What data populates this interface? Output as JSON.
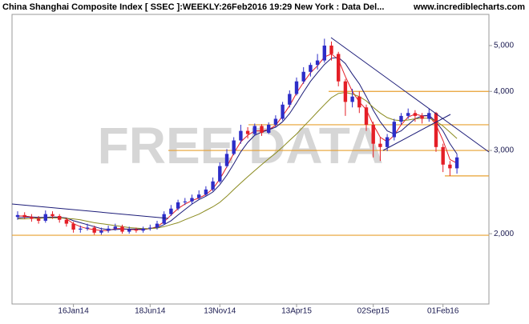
{
  "chart_data": {
    "type": "candlestick",
    "title": "China Shanghai Composite Index [ SSEC ]:WEEKLY:26Feb2016 19:29 New York : Data Del...",
    "source": "www.incrediblecharts.com",
    "watermark": "FREE DATA",
    "log_scale": true,
    "ylim": [
      1420,
      5820
    ],
    "yticks": [
      {
        "value": 2000,
        "label": "2,000"
      },
      {
        "value": 3000,
        "label": "3,000"
      },
      {
        "value": 4000,
        "label": "4,000"
      },
      {
        "value": 5000,
        "label": "5,000"
      }
    ],
    "categories": [
      null,
      null,
      null,
      null,
      null,
      null,
      null,
      null,
      "16Jan14",
      null,
      null,
      null,
      null,
      null,
      null,
      null,
      null,
      null,
      null,
      "18Jun14",
      null,
      null,
      null,
      null,
      null,
      null,
      null,
      null,
      null,
      "13Nov14",
      null,
      null,
      null,
      null,
      null,
      null,
      null,
      null,
      null,
      null,
      "13Apr15",
      null,
      null,
      null,
      null,
      null,
      null,
      null,
      null,
      null,
      null,
      "02Sep15",
      null,
      null,
      null,
      null,
      null,
      null,
      null,
      null,
      null,
      "01Feb16",
      null,
      null
    ],
    "open": [
      2170,
      2190,
      2170,
      2150,
      2130,
      2200,
      2180,
      2140,
      2100,
      2040,
      2050,
      2060,
      2010,
      2030,
      2050,
      2070,
      2020,
      2040,
      2030,
      2050,
      2060,
      2100,
      2200,
      2260,
      2330,
      2340,
      2380,
      2420,
      2480,
      2580,
      2780,
      2950,
      3150,
      3300,
      3250,
      3380,
      3270,
      3400,
      3500,
      3750,
      3950,
      4200,
      4400,
      4550,
      4650,
      5000,
      4800,
      4200,
      3800,
      3900,
      3700,
      3400,
      3100,
      3050,
      3200,
      3450,
      3550,
      3600,
      3550,
      3500,
      3600,
      3050,
      2800,
      2750
    ],
    "high": [
      2230,
      2220,
      2200,
      2180,
      2240,
      2230,
      2200,
      2160,
      2120,
      2080,
      2100,
      2080,
      2060,
      2080,
      2100,
      2090,
      2070,
      2060,
      2070,
      2090,
      2130,
      2230,
      2300,
      2360,
      2380,
      2420,
      2470,
      2520,
      2630,
      2830,
      3020,
      3200,
      3400,
      3360,
      3420,
      3410,
      3440,
      3560,
      3800,
      4020,
      4280,
      4500,
      4600,
      4800,
      5170,
      5100,
      4850,
      4250,
      4050,
      4000,
      3750,
      3450,
      3200,
      3250,
      3500,
      3600,
      3680,
      3650,
      3600,
      3680,
      3620,
      3100,
      2850,
      2950
    ],
    "low": [
      2140,
      2150,
      2120,
      2100,
      2110,
      2150,
      2110,
      2070,
      2010,
      2010,
      2030,
      1990,
      1990,
      2010,
      2030,
      2000,
      2000,
      2010,
      2010,
      2030,
      2040,
      2090,
      2180,
      2240,
      2300,
      2310,
      2360,
      2400,
      2460,
      2560,
      2760,
      2930,
      3100,
      3180,
      3220,
      3220,
      3250,
      3360,
      3470,
      3700,
      3920,
      4150,
      4300,
      4450,
      4600,
      4650,
      4100,
      3550,
      3700,
      3600,
      3300,
      2900,
      2850,
      2990,
      3150,
      3400,
      3500,
      3450,
      3420,
      3450,
      2980,
      2700,
      2650,
      2680
    ],
    "close": [
      2190,
      2170,
      2150,
      2130,
      2200,
      2180,
      2140,
      2100,
      2040,
      2050,
      2060,
      2010,
      2030,
      2050,
      2070,
      2020,
      2040,
      2030,
      2050,
      2060,
      2100,
      2200,
      2260,
      2330,
      2340,
      2380,
      2420,
      2480,
      2580,
      2780,
      2950,
      3150,
      3300,
      3250,
      3380,
      3270,
      3400,
      3500,
      3750,
      3950,
      4200,
      4400,
      4550,
      4650,
      5000,
      4800,
      4200,
      3800,
      3900,
      3700,
      3400,
      3100,
      3050,
      3200,
      3450,
      3550,
      3600,
      3550,
      3500,
      3600,
      3050,
      2800,
      2750,
      2900
    ],
    "up_color": "#2d2dc8",
    "down_color": "#e41e26",
    "moving_averages": [
      {
        "color": "#e41e26",
        "values": [
          2180,
          2180,
          2170,
          2160,
          2160,
          2170,
          2170,
          2150,
          2100,
          2070,
          2050,
          2040,
          2030,
          2030,
          2050,
          2050,
          2040,
          2040,
          2040,
          2050,
          2070,
          2120,
          2190,
          2260,
          2310,
          2350,
          2380,
          2420,
          2490,
          2610,
          2770,
          2960,
          3130,
          3230,
          3300,
          3300,
          3320,
          3390,
          3550,
          3730,
          3970,
          4180,
          4380,
          4530,
          4730,
          4800,
          4670,
          4300,
          4000,
          3800,
          3660,
          3400,
          3200,
          3130,
          3230,
          3400,
          3530,
          3580,
          3550,
          3550,
          3400,
          3150,
          2870,
          2820
        ]
      },
      {
        "color": "#1c1c78",
        "values": [
          2160,
          2165,
          2170,
          2165,
          2165,
          2170,
          2165,
          2160,
          2130,
          2110,
          2090,
          2070,
          2050,
          2040,
          2040,
          2045,
          2045,
          2045,
          2045,
          2050,
          2060,
          2090,
          2130,
          2190,
          2250,
          2310,
          2360,
          2400,
          2450,
          2540,
          2660,
          2810,
          2980,
          3120,
          3230,
          3280,
          3320,
          3360,
          3450,
          3590,
          3780,
          3990,
          4200,
          4380,
          4560,
          4700,
          4720,
          4580,
          4350,
          4150,
          3900,
          3650,
          3450,
          3300,
          3250,
          3300,
          3400,
          3500,
          3550,
          3560,
          3450,
          3300,
          3100,
          2950
        ]
      },
      {
        "color": "#8a8a1e",
        "values": [
          2150,
          2150,
          2155,
          2155,
          2160,
          2160,
          2160,
          2155,
          2150,
          2140,
          2125,
          2110,
          2100,
          2090,
          2080,
          2070,
          2060,
          2055,
          2050,
          2050,
          2055,
          2070,
          2090,
          2110,
          2140,
          2170,
          2200,
          2240,
          2280,
          2330,
          2400,
          2480,
          2560,
          2640,
          2720,
          2800,
          2880,
          2960,
          3050,
          3150,
          3250,
          3370,
          3490,
          3620,
          3750,
          3880,
          3960,
          3980,
          3950,
          3900,
          3820,
          3700,
          3600,
          3520,
          3480,
          3470,
          3480,
          3500,
          3510,
          3510,
          3460,
          3380,
          3280,
          3180
        ]
      }
    ],
    "levels": [
      1985,
      2650,
      3000,
      3400,
      4000
    ],
    "level_color": "#e8a030"
  }
}
